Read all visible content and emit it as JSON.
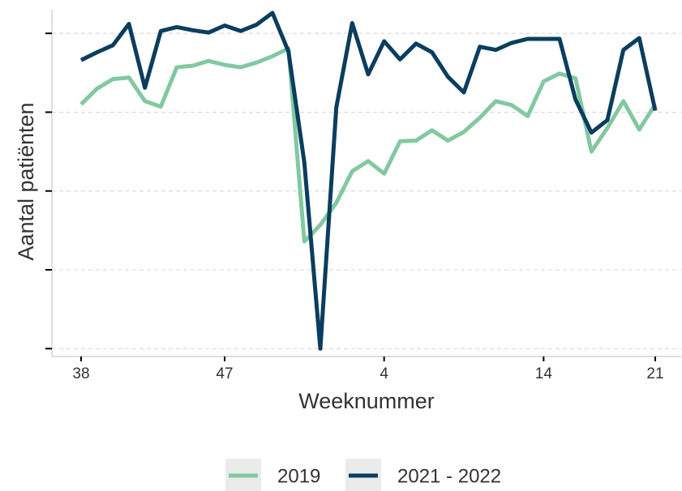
{
  "chart_data": {
    "type": "line",
    "x_label": "Weeknummer",
    "y_label": "Aantal patiënten",
    "categories": [
      "38",
      null,
      null,
      null,
      null,
      null,
      null,
      null,
      null,
      "47",
      null,
      null,
      null,
      null,
      null,
      null,
      null,
      null,
      null,
      "4",
      null,
      null,
      null,
      null,
      null,
      null,
      null,
      null,
      null,
      "14",
      null,
      null,
      null,
      null,
      null,
      null,
      "21"
    ],
    "series": [
      {
        "name": "2019",
        "color": "#82c8a0",
        "values": [
          3.1,
          3.3,
          3.42,
          3.44,
          3.14,
          3.07,
          3.57,
          3.59,
          3.65,
          3.6,
          3.57,
          3.63,
          3.71,
          3.81,
          1.36,
          1.57,
          1.85,
          2.25,
          2.38,
          2.22,
          2.63,
          2.64,
          2.77,
          2.64,
          2.75,
          2.93,
          3.14,
          3.09,
          2.95,
          3.39,
          3.49,
          3.43,
          2.5,
          2.8,
          3.14,
          2.78,
          3.1
        ]
      },
      {
        "name": "2021 - 2022",
        "color": "#0b3d5e",
        "values": [
          3.66,
          3.76,
          3.85,
          4.12,
          3.31,
          4.03,
          4.08,
          4.04,
          4.01,
          4.1,
          4.03,
          4.11,
          4.26,
          3.77,
          2.36,
          0,
          3.06,
          4.13,
          3.48,
          3.9,
          3.67,
          3.87,
          3.76,
          3.45,
          3.25,
          3.83,
          3.79,
          3.88,
          3.93,
          3.93,
          3.93,
          3.16,
          2.74,
          2.9,
          3.79,
          3.94,
          3.02
        ]
      }
    ],
    "ylim": [
      -0.1,
      4.3
    ],
    "yticks": [
      0,
      1,
      2,
      3,
      4
    ],
    "grid": true,
    "legend": "bottom"
  }
}
